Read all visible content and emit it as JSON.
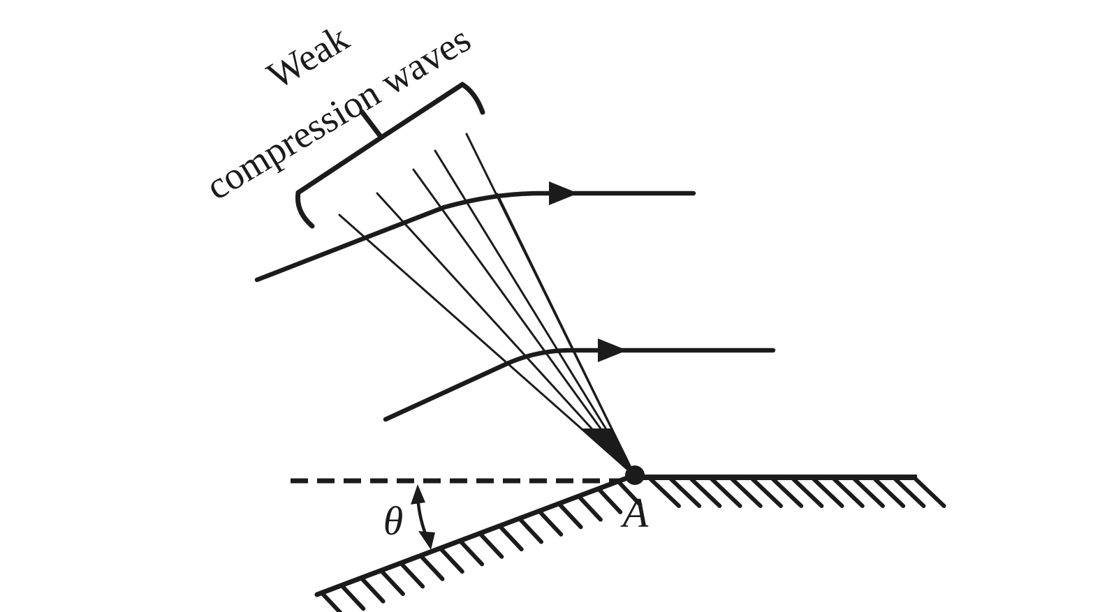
{
  "figure": {
    "background_color": "#ffffff",
    "ink_color": "#1b1b1b",
    "labels": {
      "brace_line1": "Weak",
      "brace_line2": "compression waves",
      "angle": "θ",
      "corner_point": "A"
    }
  }
}
